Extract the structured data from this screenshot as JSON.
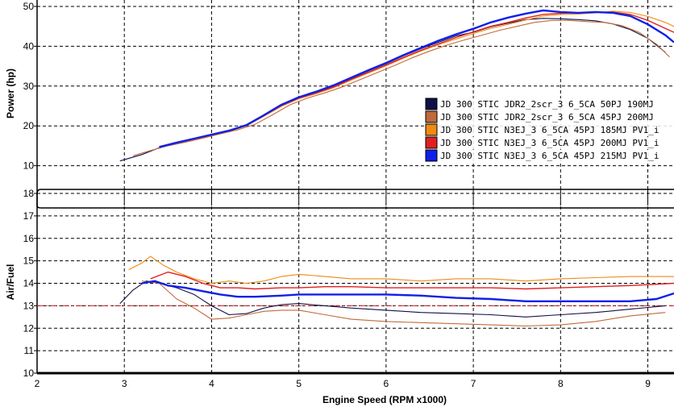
{
  "chart_data": [
    {
      "type": "line",
      "ylabel": "Power (hp)",
      "xlim": [
        2,
        9.3
      ],
      "ylim": [
        0,
        50
      ],
      "xticks": [
        "2",
        "3",
        "4",
        "5",
        "6",
        "7",
        "8",
        "9"
      ],
      "yticks": [
        "10",
        "20",
        "30",
        "40",
        "50"
      ],
      "grid": true,
      "legend_position": "right",
      "series": [
        {
          "name": "JD 300 STIC JDR2_2scr_3 6_5CA 50PJ 190MJ",
          "color": "#101048",
          "x": [
            2.95,
            3.2,
            3.4,
            3.6,
            3.8,
            4.0,
            4.2,
            4.4,
            4.6,
            4.8,
            5.0,
            5.2,
            5.4,
            5.6,
            5.8,
            6.0,
            6.2,
            6.4,
            6.6,
            6.8,
            7.0,
            7.2,
            7.4,
            7.6,
            7.8,
            8.0,
            8.2,
            8.4,
            8.6,
            8.8,
            9.0,
            9.2
          ],
          "y": [
            11.2,
            12.8,
            14.5,
            15.6,
            16.6,
            17.7,
            18.8,
            20.2,
            22.8,
            25.4,
            27.2,
            28.5,
            30.0,
            31.9,
            33.8,
            35.6,
            37.6,
            39.4,
            41.0,
            42.6,
            43.5,
            44.9,
            45.8,
            46.7,
            47.0,
            46.9,
            46.7,
            46.4,
            45.6,
            44.2,
            42.0,
            38.5
          ]
        },
        {
          "name": "JD 300 STIC JDR2_2scr_3 6_5CA 45PJ 200MJ",
          "color": "#c06a3a",
          "x": [
            3.1,
            3.3,
            3.5,
            3.7,
            3.9,
            4.1,
            4.3,
            4.5,
            4.7,
            4.9,
            5.1,
            5.3,
            5.5,
            5.7,
            5.9,
            6.1,
            6.3,
            6.5,
            6.7,
            6.9,
            7.1,
            7.3,
            7.5,
            7.7,
            7.9,
            8.1,
            8.3,
            8.5,
            8.7,
            8.9,
            9.1,
            9.25
          ],
          "y": [
            12.5,
            13.8,
            15.0,
            15.9,
            16.9,
            18.0,
            19.0,
            20.4,
            22.8,
            25.3,
            27.0,
            28.3,
            29.8,
            31.6,
            33.4,
            35.2,
            37.1,
            38.8,
            40.3,
            41.6,
            42.8,
            44.0,
            45.0,
            46.0,
            46.5,
            46.5,
            46.2,
            46.0,
            45.2,
            43.5,
            40.5,
            37.3
          ]
        },
        {
          "name": "JD 300 STIC N3EJ_3 6_5CA 45PJ 185MJ PV1_i",
          "color": "#f08a10",
          "x": [
            3.4,
            3.6,
            3.8,
            4.0,
            4.2,
            4.4,
            4.6,
            4.8,
            5.0,
            5.2,
            5.4,
            5.6,
            5.8,
            6.0,
            6.2,
            6.4,
            6.6,
            6.8,
            7.0,
            7.2,
            7.4,
            7.6,
            7.8,
            8.0,
            8.2,
            8.4,
            8.6,
            8.8,
            9.0,
            9.2,
            9.3
          ],
          "y": [
            14.8,
            15.7,
            16.6,
            17.6,
            18.6,
            20.0,
            22.4,
            24.9,
            26.8,
            28.1,
            29.6,
            31.5,
            33.3,
            35.1,
            37.0,
            38.8,
            40.4,
            41.8,
            43.2,
            44.5,
            45.5,
            46.6,
            47.6,
            48.0,
            48.1,
            48.4,
            48.8,
            48.5,
            47.5,
            46.0,
            45.0
          ]
        },
        {
          "name": "JD 300 STIC N3EJ_3 6_5CA 45PJ 200MJ PV1_i",
          "color": "#e02020",
          "x": [
            3.4,
            3.6,
            3.8,
            4.0,
            4.2,
            4.4,
            4.6,
            4.8,
            5.0,
            5.2,
            5.4,
            5.6,
            5.8,
            6.0,
            6.2,
            6.4,
            6.6,
            6.8,
            7.0,
            7.2,
            7.4,
            7.6,
            7.8,
            8.0,
            8.2,
            8.4,
            8.6,
            8.8,
            9.0,
            9.2,
            9.3
          ],
          "y": [
            14.8,
            15.8,
            16.7,
            17.7,
            18.7,
            20.1,
            22.6,
            25.1,
            27.0,
            28.3,
            29.8,
            31.7,
            33.5,
            35.3,
            37.2,
            39.0,
            40.6,
            42.2,
            43.6,
            45.0,
            46.0,
            47.1,
            48.0,
            48.3,
            48.4,
            48.5,
            48.6,
            48.0,
            46.5,
            44.5,
            43.5
          ]
        },
        {
          "name": "JD 300 STIC N3EJ_3 6_5CA 45PJ 215MJ PV1_i",
          "color": "#1020e8",
          "x": [
            3.4,
            3.6,
            3.8,
            4.0,
            4.2,
            4.4,
            4.6,
            4.8,
            5.0,
            5.2,
            5.4,
            5.6,
            5.8,
            6.0,
            6.2,
            6.4,
            6.6,
            6.8,
            7.0,
            7.2,
            7.4,
            7.6,
            7.8,
            8.0,
            8.2,
            8.4,
            8.6,
            8.8,
            9.0,
            9.2,
            9.3
          ],
          "y": [
            14.7,
            15.8,
            16.8,
            17.8,
            18.8,
            20.2,
            22.7,
            25.3,
            27.2,
            28.6,
            30.2,
            32.1,
            34.0,
            35.8,
            37.8,
            39.6,
            41.4,
            43.0,
            44.4,
            46.0,
            47.2,
            48.2,
            49.0,
            48.6,
            48.4,
            48.6,
            48.4,
            47.6,
            45.5,
            42.8,
            41.0
          ]
        }
      ]
    },
    {
      "type": "line",
      "ylabel": "Air/Fuel",
      "xlabel": "Engine Speed (RPM x1000)",
      "xlim": [
        2,
        9.3
      ],
      "ylim": [
        10,
        18
      ],
      "xticks": [
        "2",
        "3",
        "4",
        "5",
        "6",
        "7",
        "8",
        "9"
      ],
      "yticks": [
        "10",
        "11",
        "12",
        "13",
        "14",
        "15",
        "16",
        "17",
        "18"
      ],
      "grid": true,
      "reference_line": {
        "y": 13.0,
        "color": "#d02020",
        "style": "dash-dot"
      },
      "series": [
        {
          "color": "#101048",
          "x": [
            2.95,
            3.1,
            3.25,
            3.4,
            3.6,
            3.8,
            4.0,
            4.2,
            4.4,
            4.6,
            4.8,
            5.0,
            5.3,
            5.6,
            6.0,
            6.4,
            6.8,
            7.2,
            7.6,
            8.0,
            8.4,
            8.8,
            9.2
          ],
          "y": [
            13.1,
            13.7,
            14.1,
            14.0,
            13.8,
            13.5,
            13.0,
            12.6,
            12.65,
            12.9,
            13.05,
            13.1,
            13.0,
            12.9,
            12.8,
            12.7,
            12.65,
            12.6,
            12.5,
            12.6,
            12.7,
            12.85,
            13.0
          ]
        },
        {
          "color": "#c06a3a",
          "x": [
            3.2,
            3.4,
            3.6,
            3.8,
            4.0,
            4.2,
            4.4,
            4.6,
            4.8,
            5.0,
            5.3,
            5.6,
            6.0,
            6.4,
            6.8,
            7.2,
            7.6,
            8.0,
            8.4,
            8.8,
            9.2
          ],
          "y": [
            14.1,
            14.0,
            13.3,
            12.9,
            12.4,
            12.45,
            12.6,
            12.75,
            12.8,
            12.8,
            12.6,
            12.4,
            12.3,
            12.25,
            12.2,
            12.15,
            12.1,
            12.15,
            12.3,
            12.55,
            12.7
          ]
        },
        {
          "color": "#f08a10",
          "x": [
            3.05,
            3.2,
            3.3,
            3.45,
            3.6,
            3.8,
            4.0,
            4.2,
            4.4,
            4.6,
            4.8,
            5.0,
            5.3,
            5.6,
            6.0,
            6.4,
            6.8,
            7.2,
            7.6,
            8.0,
            8.4,
            8.8,
            9.2,
            9.3
          ],
          "y": [
            14.6,
            14.9,
            15.2,
            14.8,
            14.5,
            14.2,
            14.0,
            14.1,
            14.0,
            14.1,
            14.3,
            14.4,
            14.3,
            14.2,
            14.2,
            14.1,
            14.2,
            14.2,
            14.1,
            14.2,
            14.25,
            14.3,
            14.3,
            14.3
          ]
        },
        {
          "color": "#e02020",
          "x": [
            3.3,
            3.5,
            3.7,
            3.9,
            4.1,
            4.3,
            4.5,
            4.8,
            5.0,
            5.3,
            5.6,
            6.0,
            6.4,
            6.8,
            7.2,
            7.6,
            8.0,
            8.4,
            8.8,
            9.3
          ],
          "y": [
            14.2,
            14.5,
            14.3,
            14.0,
            13.8,
            13.8,
            13.75,
            13.8,
            13.8,
            13.85,
            13.85,
            13.8,
            13.8,
            13.8,
            13.8,
            13.75,
            13.8,
            13.85,
            13.9,
            14.0
          ]
        },
        {
          "color": "#1020e8",
          "x": [
            3.2,
            3.35,
            3.5,
            3.7,
            3.9,
            4.1,
            4.3,
            4.5,
            4.8,
            5.0,
            5.3,
            5.6,
            6.0,
            6.4,
            6.8,
            7.2,
            7.6,
            8.0,
            8.4,
            8.8,
            9.1,
            9.3
          ],
          "y": [
            14.0,
            14.1,
            13.9,
            13.8,
            13.65,
            13.5,
            13.4,
            13.4,
            13.45,
            13.5,
            13.5,
            13.5,
            13.5,
            13.45,
            13.35,
            13.3,
            13.2,
            13.2,
            13.2,
            13.2,
            13.3,
            13.55
          ]
        }
      ]
    }
  ]
}
